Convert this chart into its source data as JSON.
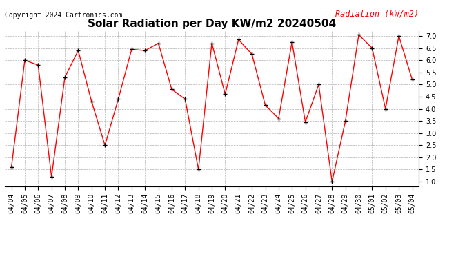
{
  "title": "Solar Radiation per Day KW/m2 20240504",
  "copyright": "Copyright 2024 Cartronics.com",
  "legend_label": "Radiation (kW/m2)",
  "dates": [
    "04/04",
    "04/05",
    "04/06",
    "04/07",
    "04/08",
    "04/09",
    "04/10",
    "04/11",
    "04/12",
    "04/13",
    "04/14",
    "04/15",
    "04/16",
    "04/17",
    "04/18",
    "04/19",
    "04/20",
    "04/21",
    "04/22",
    "04/23",
    "04/24",
    "04/25",
    "04/26",
    "04/27",
    "04/28",
    "04/29",
    "04/30",
    "05/01",
    "05/02",
    "05/03",
    "05/04"
  ],
  "values": [
    1.6,
    6.0,
    5.8,
    1.2,
    5.3,
    6.4,
    4.3,
    2.5,
    4.4,
    6.45,
    6.4,
    6.7,
    4.8,
    4.4,
    1.5,
    6.7,
    4.6,
    6.85,
    6.25,
    4.15,
    3.6,
    6.75,
    3.45,
    5.0,
    1.0,
    3.5,
    7.05,
    6.5,
    4.0,
    7.0,
    5.2
  ],
  "line_color": "red",
  "marker_color": "black",
  "background_color": "#ffffff",
  "grid_color": "#aaaaaa",
  "title_fontsize": 11,
  "copyright_fontsize": 7,
  "legend_fontsize": 8.5,
  "tick_fontsize": 7,
  "ylim": [
    0.8,
    7.2
  ],
  "yticks": [
    1.0,
    1.5,
    2.0,
    2.5,
    3.0,
    3.5,
    4.0,
    4.5,
    5.0,
    5.5,
    6.0,
    6.5,
    7.0
  ]
}
